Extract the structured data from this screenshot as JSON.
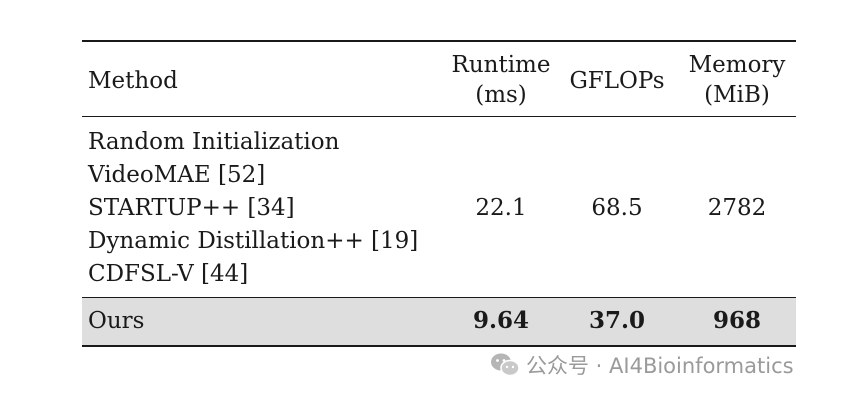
{
  "table": {
    "headers": {
      "method": "Method",
      "runtime_line1": "Runtime",
      "runtime_line2": "(ms)",
      "gflops": "GFLOPs",
      "memory_line1": "Memory",
      "memory_line2": "(MiB)"
    },
    "baseline_methods": [
      "Random Initialization",
      "VideoMAE [52]",
      "STARTUP++ [34]",
      "Dynamic Distillation++ [19]",
      "CDFSL-V [44]"
    ],
    "baseline_values": {
      "runtime": "22.1",
      "gflops": "68.5",
      "memory": "2782"
    },
    "ours": {
      "method": "Ours",
      "runtime": "9.64",
      "gflops": "37.0",
      "memory": "968"
    }
  },
  "watermark": {
    "text": "公众号 · AI4Bioinformatics",
    "icon": "wechat-icon"
  }
}
